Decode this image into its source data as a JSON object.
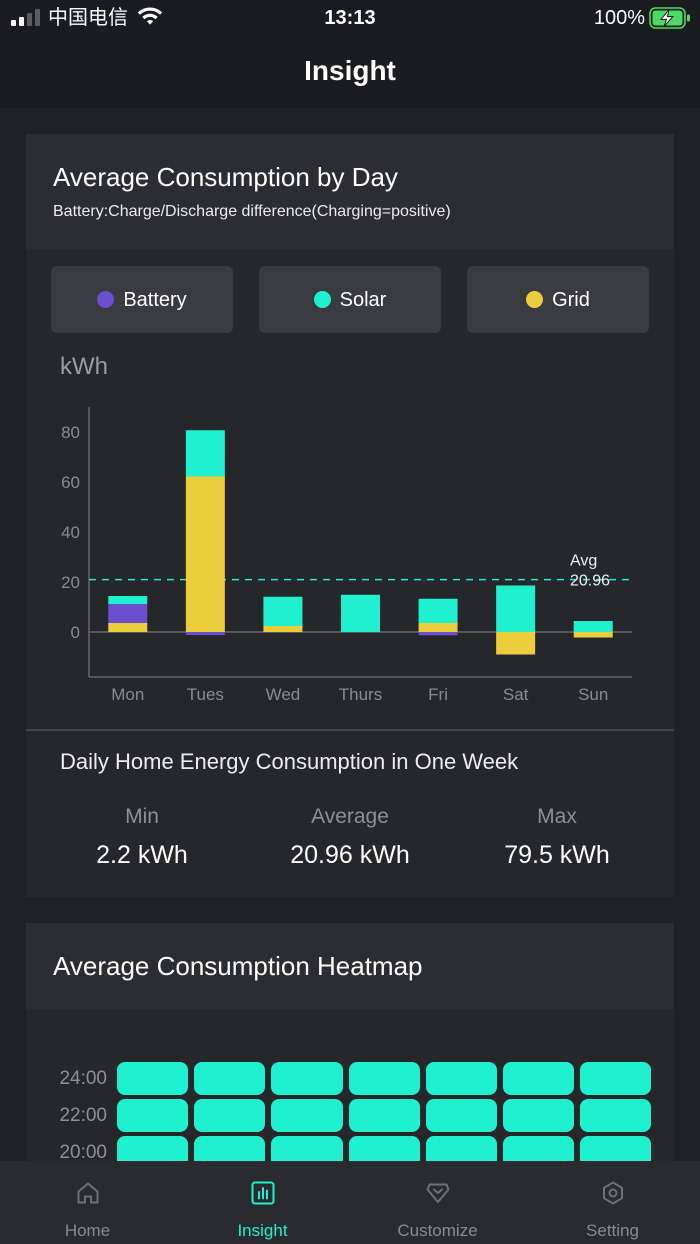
{
  "status_bar": {
    "carrier": "中国电信",
    "time": "13:13",
    "battery": "100%",
    "icons": [
      "signal-icon",
      "wifi-icon",
      "battery-charging-icon"
    ]
  },
  "header": {
    "title": "Insight"
  },
  "consumption_card": {
    "title": "Average Consumption by Day",
    "subtitle": "Battery:Charge/Discharge difference(Charging=positive)",
    "summary": {
      "title": "Daily Home Energy Consumption in One Week",
      "stats": [
        {
          "label": "Min",
          "value": "2.2 kWh"
        },
        {
          "label": "Average",
          "value": "20.96 kWh"
        },
        {
          "label": "Max",
          "value": "79.5 kWh"
        }
      ]
    }
  },
  "chart_data": {
    "type": "bar",
    "stacked": true,
    "categories": [
      "Mon",
      "Tues",
      "Wed",
      "Thurs",
      "Fri",
      "Sat",
      "Sun"
    ],
    "series": [
      {
        "name": "Battery",
        "color": "#6b4fd0",
        "values": [
          7.6,
          -1.2,
          0,
          0,
          -1.3,
          0,
          0
        ]
      },
      {
        "name": "Solar",
        "color": "#1ff0cf",
        "values": [
          3.2,
          18.5,
          11.7,
          14.9,
          9.7,
          18.6,
          4.4
        ]
      },
      {
        "name": "Grid",
        "color": "#eccd3c",
        "values": [
          3.6,
          62.2,
          2.4,
          0,
          3.6,
          -9.0,
          -2.2
        ]
      }
    ],
    "ylabel": "kWh",
    "yticks": [
      0,
      20,
      40,
      60,
      80
    ],
    "ylim": [
      -18,
      90
    ],
    "grid": false,
    "legend_placement": "top",
    "average_line": {
      "label": "Avg",
      "value": 20.96,
      "color": "#1ff0cf"
    }
  },
  "heatmap_card": {
    "title": "Average Consumption Heatmap",
    "rows": [
      {
        "label": "24:00",
        "cells": [
          "#1ff0cf",
          "#1ff0cf",
          "#1ff0cf",
          "#1ff0cf",
          "#1ff0cf",
          "#1ff0cf",
          "#1ff0cf"
        ]
      },
      {
        "label": "22:00",
        "cells": [
          "#1ff0cf",
          "#1ff0cf",
          "#1ff0cf",
          "#1ff0cf",
          "#1ff0cf",
          "#1ff0cf",
          "#1ff0cf"
        ]
      },
      {
        "label": "20:00",
        "cells": [
          "#1ff0cf",
          "#1ff0cf",
          "#1ff0cf",
          "#1ff0cf",
          "#1ff0cf",
          "#1ff0cf",
          "#1ff0cf"
        ]
      }
    ]
  },
  "tab_bar": {
    "active_color": "#1ff0cf",
    "inactive_color": "#8a8b8f",
    "inactive_icon_color": "#6f7075",
    "tabs": [
      {
        "label": "Home",
        "icon": "home-icon",
        "active": false
      },
      {
        "label": "Insight",
        "icon": "insight-icon",
        "active": true
      },
      {
        "label": "Customize",
        "icon": "customize-icon",
        "active": false
      },
      {
        "label": "Setting",
        "icon": "setting-icon",
        "active": false
      }
    ]
  }
}
